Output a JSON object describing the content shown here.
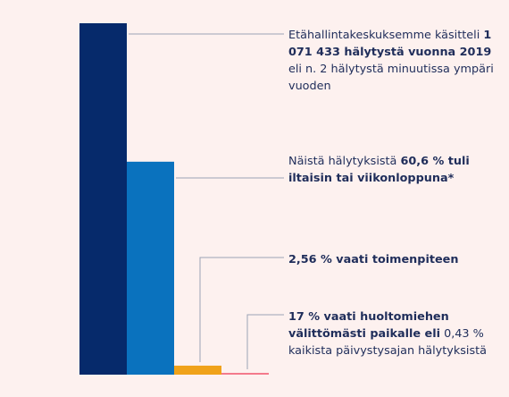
{
  "chart_data": {
    "type": "bar",
    "series": [
      {
        "value": 1071433,
        "color": "#062a6b"
      },
      {
        "value": 649288,
        "color": "#0a72be"
      },
      {
        "value": 27429,
        "color": "#f0a21a"
      },
      {
        "value": 4607,
        "color": "#f47a8c"
      }
    ],
    "ylim": [
      0,
      1071433
    ],
    "grid": false,
    "legend": "none",
    "annotations": [
      {
        "parts": [
          {
            "text": "Etähallintakeskuksemme käsitteli ",
            "bold": false
          },
          {
            "text": "1 071 433 hälytystä vuonna 2019",
            "bold": true
          },
          {
            "text": " eli n. 2 hälytystä minuutissa ympäri vuoden",
            "bold": false
          }
        ]
      },
      {
        "parts": [
          {
            "text": "Näistä hälytyksistä ",
            "bold": false
          },
          {
            "text": "60,6 % tuli iltaisin tai viikonloppuna*",
            "bold": true
          }
        ]
      },
      {
        "parts": [
          {
            "text": "2,56 % vaati toimenpiteen",
            "bold": true
          }
        ]
      },
      {
        "parts": [
          {
            "text": "17 % vaati huoltomiehen välittömästi paikalle eli",
            "bold": true
          },
          {
            "text": " 0,43 % kaikista päivystysajan hälytyksistä",
            "bold": false
          }
        ]
      }
    ]
  }
}
